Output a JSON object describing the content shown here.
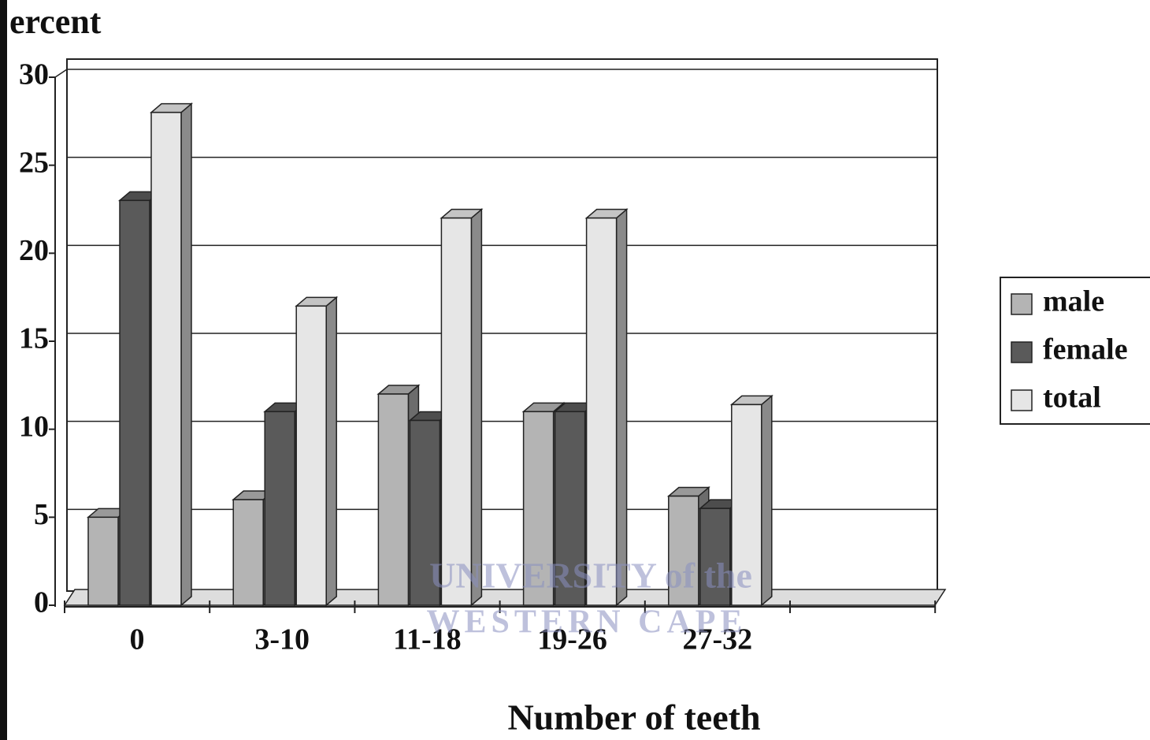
{
  "chart_data": {
    "type": "bar",
    "y_axis_label": "ercent",
    "x_axis_label": "Number of teeth",
    "categories": [
      "0",
      "3-10",
      "11-18",
      "19-26",
      "27-32",
      null
    ],
    "series": [
      {
        "name": "male",
        "color": "#b4b4b4",
        "values": [
          5,
          6,
          12,
          11,
          6.2,
          null
        ]
      },
      {
        "name": "female",
        "color": "#5a5a5a",
        "values": [
          23,
          11,
          10.5,
          11,
          5.5,
          null
        ]
      },
      {
        "name": "total",
        "color": "#e6e6e6",
        "values": [
          28,
          17,
          22,
          22,
          11.4,
          null
        ]
      }
    ],
    "ylim": [
      0,
      30
    ],
    "yticks": [
      0,
      5,
      10,
      15,
      20,
      25,
      30
    ],
    "grid": true,
    "legend": "right",
    "watermark": [
      "UNIVERSITY of the",
      "WESTERN CAPE"
    ]
  }
}
